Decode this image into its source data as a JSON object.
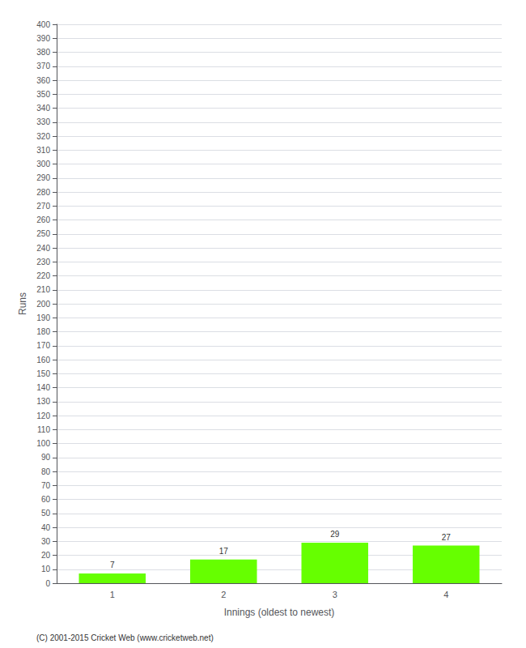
{
  "chart_data": {
    "type": "bar",
    "categories": [
      "1",
      "2",
      "3",
      "4"
    ],
    "values": [
      7,
      17,
      29,
      27
    ],
    "color": "#66ff00",
    "xlabel": "Innings (oldest to newest)",
    "ylabel": "Runs",
    "ylim": [
      0,
      400
    ],
    "yticks": [
      0,
      10,
      20,
      30,
      40,
      50,
      60,
      70,
      80,
      90,
      100,
      110,
      120,
      130,
      140,
      150,
      160,
      170,
      180,
      190,
      200,
      210,
      220,
      230,
      240,
      250,
      260,
      270,
      280,
      290,
      300,
      310,
      320,
      330,
      340,
      350,
      360,
      370,
      380,
      390,
      400
    ],
    "grid": true,
    "data_labels": true,
    "annotation": "(C) 2001-2015 Cricket Web (www.cricketweb.net)"
  }
}
